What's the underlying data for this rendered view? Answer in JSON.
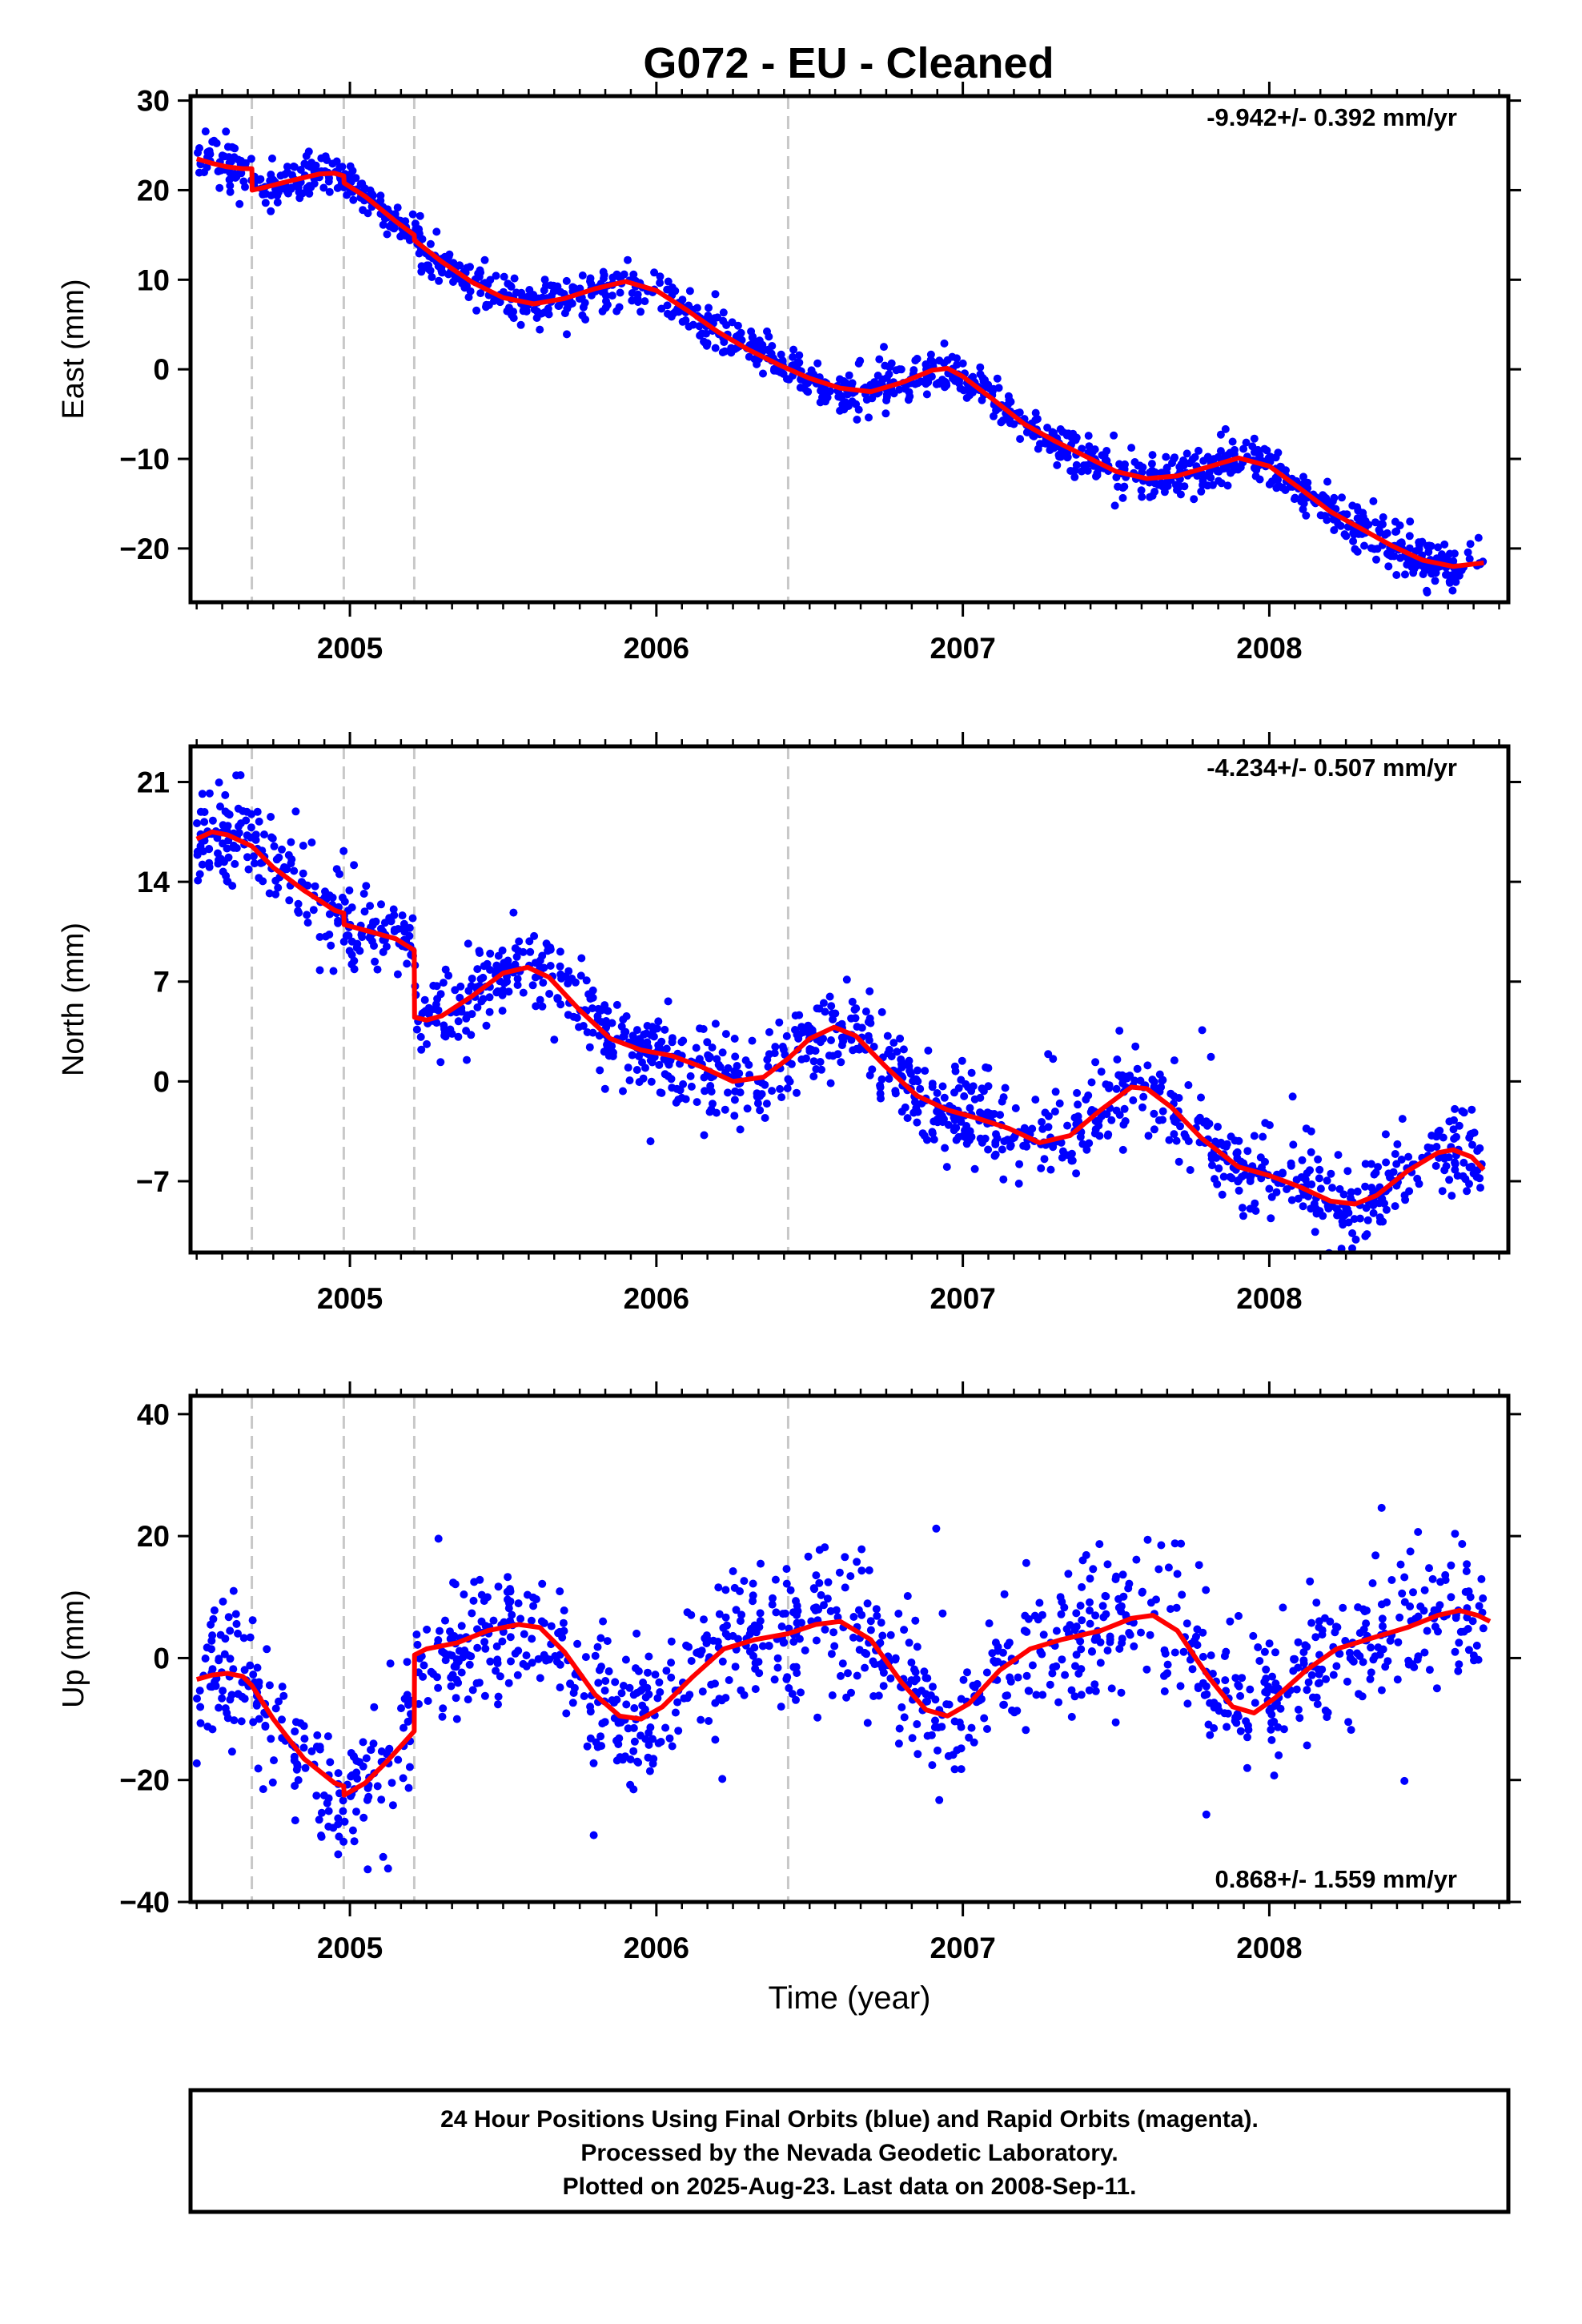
{
  "title": "G072  - EU - Cleaned",
  "footer": {
    "lines": [
      "24 Hour Positions Using Final Orbits (blue) and Rapid Orbits (magenta).",
      "Processed by the Nevada Geodetic Laboratory.",
      "Plotted on 2025-Aug-23. Last data on 2008-Sep-11."
    ]
  },
  "colors": {
    "data": "#0000ff",
    "model": "#ff0000",
    "steps": "#c8c8c8"
  },
  "chart_data": [
    {
      "type": "scatter",
      "name": "east",
      "ylabel": "East (mm)",
      "xlabel": "",
      "rate": "-9.942+/- 0.392 mm/yr",
      "rate_position": "top-right",
      "xlim": [
        2004.48,
        2008.78
      ],
      "ylim": [
        -26,
        30.5
      ],
      "yticks": [
        30,
        20,
        10,
        0,
        -10,
        -20
      ],
      "ytick_labels": [
        "30",
        "20",
        "10",
        "0",
        "−10",
        "−20"
      ],
      "xticks": [
        2005,
        2006,
        2007,
        2008
      ],
      "xtick_labels": [
        "2005",
        "2006",
        "2007",
        "2008"
      ],
      "step_epochs": [
        2004.68,
        2004.98,
        2005.21,
        2006.43
      ],
      "model": [
        [
          2004.5,
          23.5
        ],
        [
          2004.55,
          23.0
        ],
        [
          2004.6,
          22.6
        ],
        [
          2004.65,
          22.4
        ],
        [
          2004.68,
          22.4
        ],
        [
          2004.681,
          20.0
        ],
        [
          2004.72,
          20.3
        ],
        [
          2004.8,
          21.0
        ],
        [
          2004.9,
          21.8
        ],
        [
          2004.95,
          21.9
        ],
        [
          2004.98,
          21.6
        ],
        [
          2004.981,
          20.8
        ],
        [
          2005.05,
          19.3
        ],
        [
          2005.1,
          17.9
        ],
        [
          2005.15,
          16.5
        ],
        [
          2005.21,
          15.0
        ],
        [
          2005.211,
          14.4
        ],
        [
          2005.3,
          12.0
        ],
        [
          2005.4,
          9.7
        ],
        [
          2005.5,
          8.0
        ],
        [
          2005.6,
          7.3
        ],
        [
          2005.7,
          7.9
        ],
        [
          2005.8,
          9.0
        ],
        [
          2005.9,
          9.8
        ],
        [
          2006.0,
          8.8
        ],
        [
          2006.1,
          6.6
        ],
        [
          2006.2,
          4.2
        ],
        [
          2006.3,
          2.2
        ],
        [
          2006.4,
          0.5
        ],
        [
          2006.5,
          -1.0
        ],
        [
          2006.6,
          -2.1
        ],
        [
          2006.7,
          -2.5
        ],
        [
          2006.8,
          -1.5
        ],
        [
          2006.9,
          -0.1
        ],
        [
          2006.95,
          0.1
        ],
        [
          2007.0,
          -0.8
        ],
        [
          2007.1,
          -3.4
        ],
        [
          2007.2,
          -6.1
        ],
        [
          2007.3,
          -8.0
        ],
        [
          2007.4,
          -9.7
        ],
        [
          2007.5,
          -11.4
        ],
        [
          2007.6,
          -12.2
        ],
        [
          2007.7,
          -11.9
        ],
        [
          2007.8,
          -10.9
        ],
        [
          2007.9,
          -9.9
        ],
        [
          2008.0,
          -10.8
        ],
        [
          2008.1,
          -13.3
        ],
        [
          2008.2,
          -15.9
        ],
        [
          2008.3,
          -17.8
        ],
        [
          2008.4,
          -19.7
        ],
        [
          2008.5,
          -21.3
        ],
        [
          2008.6,
          -22.0
        ],
        [
          2008.7,
          -21.6
        ]
      ],
      "scatter": {
        "count": 1300,
        "noise": 1.2,
        "x_range": [
          2004.5,
          2008.7
        ]
      }
    },
    {
      "type": "scatter",
      "name": "north",
      "ylabel": "North (mm)",
      "xlabel": "",
      "rate": "-4.234+/- 0.507 mm/yr",
      "rate_position": "top-right",
      "xlim": [
        2004.48,
        2008.78
      ],
      "ylim": [
        -12,
        23.5
      ],
      "yticks": [
        21,
        14,
        7,
        0,
        -7
      ],
      "ytick_labels": [
        "21",
        "14",
        "7",
        "0",
        "−7"
      ],
      "xticks": [
        2005,
        2006,
        2007,
        2008
      ],
      "xtick_labels": [
        "2005",
        "2006",
        "2007",
        "2008"
      ],
      "step_epochs": [
        2004.68,
        2004.98,
        2005.21,
        2006.43
      ],
      "model": [
        [
          2004.5,
          17.0
        ],
        [
          2004.55,
          17.5
        ],
        [
          2004.6,
          17.3
        ],
        [
          2004.68,
          16.5
        ],
        [
          2004.75,
          15.0
        ],
        [
          2004.85,
          13.4
        ],
        [
          2004.95,
          12.0
        ],
        [
          2004.98,
          11.8
        ],
        [
          2004.981,
          11.0
        ],
        [
          2005.05,
          10.6
        ],
        [
          2005.15,
          10.0
        ],
        [
          2005.21,
          9.2
        ],
        [
          2005.211,
          4.5
        ],
        [
          2005.25,
          4.3
        ],
        [
          2005.3,
          4.6
        ],
        [
          2005.4,
          6.0
        ],
        [
          2005.5,
          7.6
        ],
        [
          2005.58,
          8.0
        ],
        [
          2005.65,
          7.3
        ],
        [
          2005.75,
          5.0
        ],
        [
          2005.85,
          3.0
        ],
        [
          2005.95,
          2.2
        ],
        [
          2006.05,
          1.8
        ],
        [
          2006.15,
          1.0
        ],
        [
          2006.25,
          0.0
        ],
        [
          2006.35,
          0.3
        ],
        [
          2006.43,
          1.6
        ],
        [
          2006.5,
          3.0
        ],
        [
          2006.58,
          3.8
        ],
        [
          2006.65,
          3.2
        ],
        [
          2006.75,
          1.0
        ],
        [
          2006.85,
          -1.0
        ],
        [
          2006.95,
          -2.0
        ],
        [
          2007.05,
          -2.6
        ],
        [
          2007.15,
          -3.3
        ],
        [
          2007.25,
          -4.3
        ],
        [
          2007.35,
          -3.8
        ],
        [
          2007.45,
          -2.0
        ],
        [
          2007.55,
          -0.4
        ],
        [
          2007.6,
          -0.5
        ],
        [
          2007.68,
          -1.8
        ],
        [
          2007.78,
          -4.0
        ],
        [
          2007.9,
          -6.0
        ],
        [
          2008.0,
          -6.6
        ],
        [
          2008.1,
          -7.4
        ],
        [
          2008.2,
          -8.4
        ],
        [
          2008.28,
          -8.6
        ],
        [
          2008.35,
          -8.0
        ],
        [
          2008.45,
          -6.3
        ],
        [
          2008.55,
          -5.0
        ],
        [
          2008.6,
          -4.8
        ],
        [
          2008.66,
          -5.3
        ],
        [
          2008.7,
          -6.2
        ]
      ],
      "scatter": {
        "count": 1300,
        "noise": 1.5,
        "x_range": [
          2004.5,
          2008.7
        ]
      }
    },
    {
      "type": "scatter",
      "name": "up",
      "ylabel": "Up (mm)",
      "xlabel": "Time (year)",
      "rate": "0.868+/- 1.559 mm/yr",
      "rate_position": "bottom-right",
      "xlim": [
        2004.48,
        2008.78
      ],
      "ylim": [
        -40,
        43
      ],
      "yticks": [
        40,
        20,
        0,
        -20,
        -40
      ],
      "ytick_labels": [
        "40",
        "20",
        "0",
        "−20",
        "−40"
      ],
      "xticks": [
        2005,
        2006,
        2007,
        2008
      ],
      "xtick_labels": [
        "2005",
        "2006",
        "2007",
        "2008"
      ],
      "step_epochs": [
        2004.68,
        2004.98,
        2005.21,
        2006.43
      ],
      "model": [
        [
          2004.5,
          -3.5
        ],
        [
          2004.55,
          -2.8
        ],
        [
          2004.6,
          -2.5
        ],
        [
          2004.65,
          -3.0
        ],
        [
          2004.68,
          -4.5
        ],
        [
          2004.75,
          -10.0
        ],
        [
          2004.85,
          -16.5
        ],
        [
          2004.95,
          -20.5
        ],
        [
          2004.98,
          -21.0
        ],
        [
          2004.981,
          -22.5
        ],
        [
          2005.05,
          -20.5
        ],
        [
          2005.12,
          -17.0
        ],
        [
          2005.21,
          -12.0
        ],
        [
          2005.211,
          0.5
        ],
        [
          2005.25,
          1.5
        ],
        [
          2005.35,
          2.5
        ],
        [
          2005.45,
          4.5
        ],
        [
          2005.55,
          5.5
        ],
        [
          2005.62,
          5.0
        ],
        [
          2005.7,
          1.0
        ],
        [
          2005.8,
          -6.0
        ],
        [
          2005.88,
          -9.5
        ],
        [
          2005.95,
          -10.0
        ],
        [
          2006.02,
          -8.0
        ],
        [
          2006.12,
          -3.0
        ],
        [
          2006.22,
          1.5
        ],
        [
          2006.32,
          3.0
        ],
        [
          2006.43,
          4.0
        ],
        [
          2006.52,
          5.5
        ],
        [
          2006.6,
          6.0
        ],
        [
          2006.7,
          3.0
        ],
        [
          2006.8,
          -4.0
        ],
        [
          2006.88,
          -8.5
        ],
        [
          2006.95,
          -9.5
        ],
        [
          2007.02,
          -7.5
        ],
        [
          2007.12,
          -2.0
        ],
        [
          2007.22,
          1.5
        ],
        [
          2007.32,
          3.0
        ],
        [
          2007.45,
          4.5
        ],
        [
          2007.55,
          6.5
        ],
        [
          2007.62,
          7.0
        ],
        [
          2007.7,
          4.5
        ],
        [
          2007.8,
          -3.0
        ],
        [
          2007.88,
          -8.0
        ],
        [
          2007.95,
          -9.0
        ],
        [
          2008.02,
          -6.5
        ],
        [
          2008.12,
          -2.0
        ],
        [
          2008.22,
          1.5
        ],
        [
          2008.35,
          3.5
        ],
        [
          2008.45,
          5.0
        ],
        [
          2008.55,
          7.0
        ],
        [
          2008.62,
          7.8
        ],
        [
          2008.68,
          7.0
        ],
        [
          2008.72,
          6.0
        ]
      ],
      "scatter": {
        "count": 1200,
        "noise": 5.5,
        "x_range": [
          2004.5,
          2008.7
        ]
      }
    }
  ]
}
